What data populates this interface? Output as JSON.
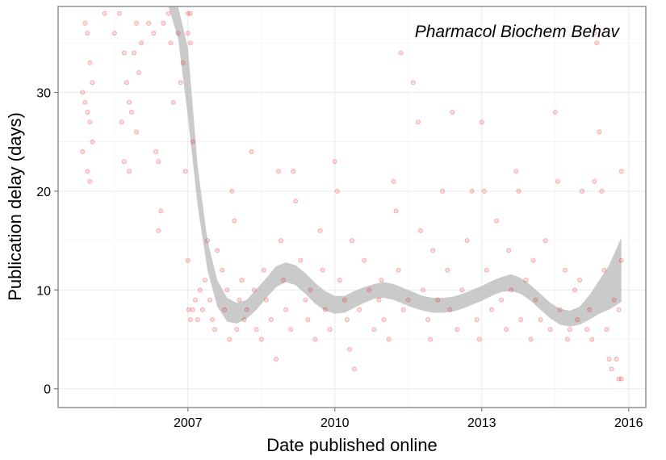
{
  "chart_data": {
    "type": "scatter",
    "xlabel": "Date published online",
    "ylabel": "Publication delay (days)",
    "annotation": "Pharmacol Biochem Behav",
    "x_ticks": [
      2007,
      2010,
      2013,
      2016
    ],
    "y_ticks": [
      0,
      10,
      20,
      30
    ],
    "xlim": [
      2004.35,
      2016.35
    ],
    "ylim": [
      -1.9,
      38.7
    ],
    "grid": true,
    "point_color": "#e31a1c",
    "smooth_color": "#bdbdbd",
    "points": [
      [
        2004.9,
        37
      ],
      [
        2004.95,
        36
      ],
      [
        2005.0,
        33
      ],
      [
        2005.05,
        31
      ],
      [
        2004.85,
        30
      ],
      [
        2004.9,
        29
      ],
      [
        2004.95,
        28
      ],
      [
        2005.0,
        27
      ],
      [
        2005.05,
        25
      ],
      [
        2004.85,
        24
      ],
      [
        2004.95,
        22
      ],
      [
        2005.0,
        21
      ],
      [
        2005.3,
        38
      ],
      [
        2005.5,
        36
      ],
      [
        2005.6,
        38
      ],
      [
        2005.7,
        34
      ],
      [
        2005.75,
        31
      ],
      [
        2005.8,
        29
      ],
      [
        2005.85,
        28
      ],
      [
        2005.65,
        27
      ],
      [
        2005.9,
        34
      ],
      [
        2005.95,
        37
      ],
      [
        2005.7,
        23
      ],
      [
        2005.8,
        22
      ],
      [
        2005.95,
        26
      ],
      [
        2006.0,
        32
      ],
      [
        2006.05,
        35
      ],
      [
        2006.2,
        37
      ],
      [
        2006.3,
        36
      ],
      [
        2006.35,
        24
      ],
      [
        2006.4,
        23
      ],
      [
        2006.45,
        18
      ],
      [
        2006.4,
        16
      ],
      [
        2006.5,
        37
      ],
      [
        2006.6,
        38
      ],
      [
        2006.7,
        29
      ],
      [
        2006.8,
        36
      ],
      [
        2006.9,
        33
      ],
      [
        2006.95,
        22
      ],
      [
        2006.65,
        35
      ],
      [
        2006.85,
        31
      ],
      [
        2007.0,
        38
      ],
      [
        2007.05,
        38
      ],
      [
        2007.0,
        36
      ],
      [
        2007.05,
        35
      ],
      [
        2007.1,
        25
      ],
      [
        2007.0,
        13
      ],
      [
        2007.02,
        8
      ],
      [
        2007.05,
        7
      ],
      [
        2007.1,
        8
      ],
      [
        2007.15,
        9
      ],
      [
        2007.2,
        7
      ],
      [
        2007.25,
        10
      ],
      [
        2007.3,
        8
      ],
      [
        2007.35,
        11
      ],
      [
        2007.4,
        15
      ],
      [
        2007.45,
        9
      ],
      [
        2007.5,
        7
      ],
      [
        2007.55,
        6
      ],
      [
        2007.6,
        14
      ],
      [
        2007.7,
        12
      ],
      [
        2007.75,
        8
      ],
      [
        2007.8,
        10
      ],
      [
        2007.85,
        5
      ],
      [
        2007.9,
        20
      ],
      [
        2007.95,
        17
      ],
      [
        2008.0,
        6
      ],
      [
        2008.05,
        9
      ],
      [
        2008.1,
        11
      ],
      [
        2008.15,
        7
      ],
      [
        2008.2,
        8
      ],
      [
        2008.3,
        24
      ],
      [
        2008.35,
        10
      ],
      [
        2008.4,
        6
      ],
      [
        2008.5,
        5
      ],
      [
        2008.55,
        12
      ],
      [
        2008.6,
        9
      ],
      [
        2008.7,
        7
      ],
      [
        2008.8,
        3
      ],
      [
        2008.85,
        22
      ],
      [
        2008.9,
        15
      ],
      [
        2008.95,
        11
      ],
      [
        2009.0,
        8
      ],
      [
        2009.1,
        6
      ],
      [
        2009.15,
        22
      ],
      [
        2009.2,
        19
      ],
      [
        2009.3,
        13
      ],
      [
        2009.4,
        9
      ],
      [
        2009.45,
        7
      ],
      [
        2009.5,
        10
      ],
      [
        2009.6,
        5
      ],
      [
        2009.7,
        16
      ],
      [
        2009.75,
        12
      ],
      [
        2009.8,
        8
      ],
      [
        2009.9,
        6
      ],
      [
        2010.0,
        23
      ],
      [
        2010.05,
        20
      ],
      [
        2010.1,
        11
      ],
      [
        2010.2,
        9
      ],
      [
        2010.25,
        7
      ],
      [
        2010.3,
        4
      ],
      [
        2010.35,
        15
      ],
      [
        2010.4,
        2
      ],
      [
        2010.5,
        8
      ],
      [
        2010.6,
        13
      ],
      [
        2010.7,
        10
      ],
      [
        2010.8,
        6
      ],
      [
        2010.9,
        9
      ],
      [
        2010.95,
        11
      ],
      [
        2011.0,
        7
      ],
      [
        2011.1,
        5
      ],
      [
        2011.2,
        21
      ],
      [
        2011.25,
        18
      ],
      [
        2011.3,
        12
      ],
      [
        2011.35,
        34
      ],
      [
        2011.4,
        8
      ],
      [
        2011.5,
        9
      ],
      [
        2011.6,
        31
      ],
      [
        2011.7,
        27
      ],
      [
        2011.75,
        16
      ],
      [
        2011.8,
        10
      ],
      [
        2011.9,
        7
      ],
      [
        2011.95,
        5
      ],
      [
        2012.0,
        14
      ],
      [
        2012.1,
        9
      ],
      [
        2012.2,
        20
      ],
      [
        2012.3,
        12
      ],
      [
        2012.35,
        8
      ],
      [
        2012.4,
        28
      ],
      [
        2012.5,
        6
      ],
      [
        2012.6,
        10
      ],
      [
        2012.7,
        15
      ],
      [
        2012.8,
        20
      ],
      [
        2012.9,
        7
      ],
      [
        2012.95,
        5
      ],
      [
        2013.0,
        27
      ],
      [
        2013.05,
        20
      ],
      [
        2013.1,
        12
      ],
      [
        2013.2,
        8
      ],
      [
        2013.3,
        17
      ],
      [
        2013.4,
        9
      ],
      [
        2013.5,
        6
      ],
      [
        2013.55,
        14
      ],
      [
        2013.6,
        10
      ],
      [
        2013.7,
        22
      ],
      [
        2013.75,
        20
      ],
      [
        2013.8,
        7
      ],
      [
        2013.9,
        11
      ],
      [
        2014.0,
        5
      ],
      [
        2014.05,
        13
      ],
      [
        2014.1,
        9
      ],
      [
        2014.2,
        7
      ],
      [
        2014.3,
        15
      ],
      [
        2014.4,
        6
      ],
      [
        2014.5,
        28
      ],
      [
        2014.55,
        21
      ],
      [
        2014.6,
        8
      ],
      [
        2014.7,
        12
      ],
      [
        2014.75,
        5
      ],
      [
        2014.8,
        6
      ],
      [
        2014.9,
        10
      ],
      [
        2014.95,
        7
      ],
      [
        2015.0,
        11
      ],
      [
        2015.05,
        20
      ],
      [
        2015.15,
        6
      ],
      [
        2015.2,
        8
      ],
      [
        2015.25,
        5
      ],
      [
        2015.3,
        36
      ],
      [
        2015.35,
        35
      ],
      [
        2015.4,
        26
      ],
      [
        2015.3,
        21
      ],
      [
        2015.45,
        20
      ],
      [
        2015.5,
        12
      ],
      [
        2015.55,
        6
      ],
      [
        2015.6,
        3
      ],
      [
        2015.65,
        2
      ],
      [
        2015.7,
        9
      ],
      [
        2015.75,
        3
      ],
      [
        2015.8,
        8
      ],
      [
        2015.85,
        13
      ],
      [
        2015.85,
        22
      ],
      [
        2015.8,
        1
      ],
      [
        2015.85,
        1
      ]
    ],
    "smooth": [
      [
        2006.6,
        38.7,
        38.7
      ],
      [
        2006.8,
        35.5,
        38.7
      ],
      [
        2007.0,
        27.5,
        34.5
      ],
      [
        2007.2,
        18.5,
        22.5
      ],
      [
        2007.4,
        12.0,
        15.0
      ],
      [
        2007.6,
        8.3,
        11.0
      ],
      [
        2007.8,
        6.8,
        9.2
      ],
      [
        2008.0,
        6.6,
        8.7
      ],
      [
        2008.2,
        7.1,
        9.0
      ],
      [
        2008.4,
        8.0,
        10.1
      ],
      [
        2008.6,
        9.2,
        11.2
      ],
      [
        2008.8,
        10.3,
        12.4
      ],
      [
        2009.0,
        10.8,
        12.8
      ],
      [
        2009.2,
        10.5,
        12.5
      ],
      [
        2009.4,
        9.6,
        11.7
      ],
      [
        2009.6,
        8.6,
        10.7
      ],
      [
        2009.8,
        7.9,
        9.9
      ],
      [
        2010.0,
        7.6,
        9.4
      ],
      [
        2010.2,
        7.7,
        9.4
      ],
      [
        2010.4,
        8.2,
        9.9
      ],
      [
        2010.6,
        8.7,
        10.3
      ],
      [
        2010.8,
        9.1,
        10.6
      ],
      [
        2011.0,
        9.2,
        10.8
      ],
      [
        2011.2,
        9.0,
        10.6
      ],
      [
        2011.4,
        8.6,
        10.2
      ],
      [
        2011.6,
        8.2,
        9.8
      ],
      [
        2011.8,
        7.9,
        9.4
      ],
      [
        2012.0,
        7.7,
        9.2
      ],
      [
        2012.2,
        7.7,
        9.2
      ],
      [
        2012.4,
        7.8,
        9.3
      ],
      [
        2012.6,
        8.1,
        9.6
      ],
      [
        2012.8,
        8.5,
        10.0
      ],
      [
        2013.0,
        8.9,
        10.4
      ],
      [
        2013.2,
        9.4,
        10.9
      ],
      [
        2013.4,
        9.8,
        11.3
      ],
      [
        2013.6,
        9.9,
        11.6
      ],
      [
        2013.8,
        9.6,
        11.2
      ],
      [
        2014.0,
        8.9,
        10.5
      ],
      [
        2014.2,
        8.0,
        9.6
      ],
      [
        2014.4,
        7.1,
        8.7
      ],
      [
        2014.6,
        6.5,
        8.1
      ],
      [
        2014.8,
        6.3,
        7.9
      ],
      [
        2015.0,
        6.5,
        8.3
      ],
      [
        2015.2,
        7.0,
        9.5
      ],
      [
        2015.4,
        7.6,
        11.0
      ],
      [
        2015.6,
        8.0,
        12.5
      ],
      [
        2015.85,
        8.8,
        15.3
      ]
    ]
  }
}
